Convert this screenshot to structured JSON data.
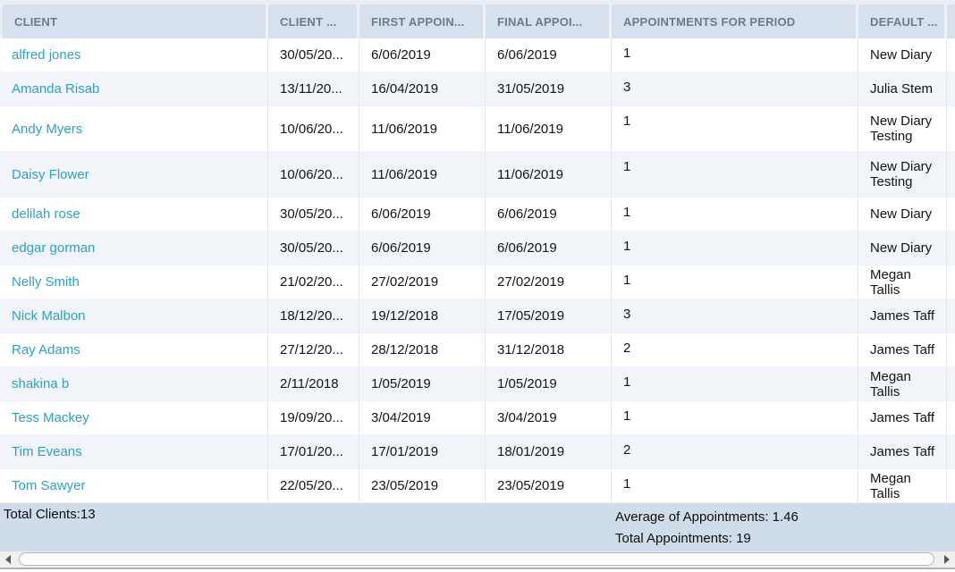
{
  "table": {
    "columns": [
      {
        "label": "CLIENT"
      },
      {
        "label": "CLIENT ..."
      },
      {
        "label": "FIRST APPOIN..."
      },
      {
        "label": "FINAL APPOI..."
      },
      {
        "label": "APPOINTMENTS FOR PERIOD"
      },
      {
        "label": "DEFAULT ..."
      }
    ],
    "rows": [
      {
        "client": "alfred jones",
        "client_date": "30/05/20...",
        "first_appointment": "6/06/2019",
        "final_appointment": "6/06/2019",
        "appointments_for_period": "1",
        "default_diary": "New Diary"
      },
      {
        "client": "Amanda Risab",
        "client_date": "13/11/20...",
        "first_appointment": "16/04/2019",
        "final_appointment": "31/05/2019",
        "appointments_for_period": "3",
        "default_diary": "Julia Stem"
      },
      {
        "client": "Andy Myers",
        "client_date": "10/06/20...",
        "first_appointment": "11/06/2019",
        "final_appointment": "11/06/2019",
        "appointments_for_period": "1",
        "default_diary": "New Diary Testing"
      },
      {
        "client": "Daisy Flower",
        "client_date": "10/06/20...",
        "first_appointment": "11/06/2019",
        "final_appointment": "11/06/2019",
        "appointments_for_period": "1",
        "default_diary": "New Diary Testing"
      },
      {
        "client": "delilah rose",
        "client_date": "30/05/20...",
        "first_appointment": "6/06/2019",
        "final_appointment": "6/06/2019",
        "appointments_for_period": "1",
        "default_diary": "New Diary"
      },
      {
        "client": "edgar gorman",
        "client_date": "30/05/20...",
        "first_appointment": "6/06/2019",
        "final_appointment": "6/06/2019",
        "appointments_for_period": "1",
        "default_diary": "New Diary"
      },
      {
        "client": "Nelly Smith",
        "client_date": "21/02/20...",
        "first_appointment": "27/02/2019",
        "final_appointment": "27/02/2019",
        "appointments_for_period": "1",
        "default_diary": "Megan Tallis"
      },
      {
        "client": "Nick Malbon",
        "client_date": "18/12/20...",
        "first_appointment": "19/12/2018",
        "final_appointment": "17/05/2019",
        "appointments_for_period": "3",
        "default_diary": "James Taff"
      },
      {
        "client": "Ray Adams",
        "client_date": "27/12/20...",
        "first_appointment": "28/12/2018",
        "final_appointment": "31/12/2018",
        "appointments_for_period": "2",
        "default_diary": "James Taff"
      },
      {
        "client": "shakina b",
        "client_date": "2/11/2018",
        "first_appointment": "1/05/2019",
        "final_appointment": "1/05/2019",
        "appointments_for_period": "1",
        "default_diary": "Megan Tallis"
      },
      {
        "client": "Tess Mackey",
        "client_date": "19/09/20...",
        "first_appointment": "3/04/2019",
        "final_appointment": "3/04/2019",
        "appointments_for_period": "1",
        "default_diary": "James Taff"
      },
      {
        "client": "Tim Eveans",
        "client_date": "17/01/20...",
        "first_appointment": "17/01/2019",
        "final_appointment": "18/01/2019",
        "appointments_for_period": "2",
        "default_diary": "James Taff"
      },
      {
        "client": "Tom Sawyer",
        "client_date": "22/05/20...",
        "first_appointment": "23/05/2019",
        "final_appointment": "23/05/2019",
        "appointments_for_period": "1",
        "default_diary": "Megan Tallis"
      }
    ]
  },
  "summary": {
    "total_clients": "Total Clients:13",
    "average_of_appointments": "Average of Appointments: 1.46",
    "total_appointments": "Total Appointments: 19"
  },
  "colors": {
    "client_link": "#2aa2c8",
    "header_bg": "#d7e1ee",
    "header_text": "#6e7a88",
    "row_alt_bg": "#f1f5f9",
    "summary_bg": "#cfdcea"
  }
}
